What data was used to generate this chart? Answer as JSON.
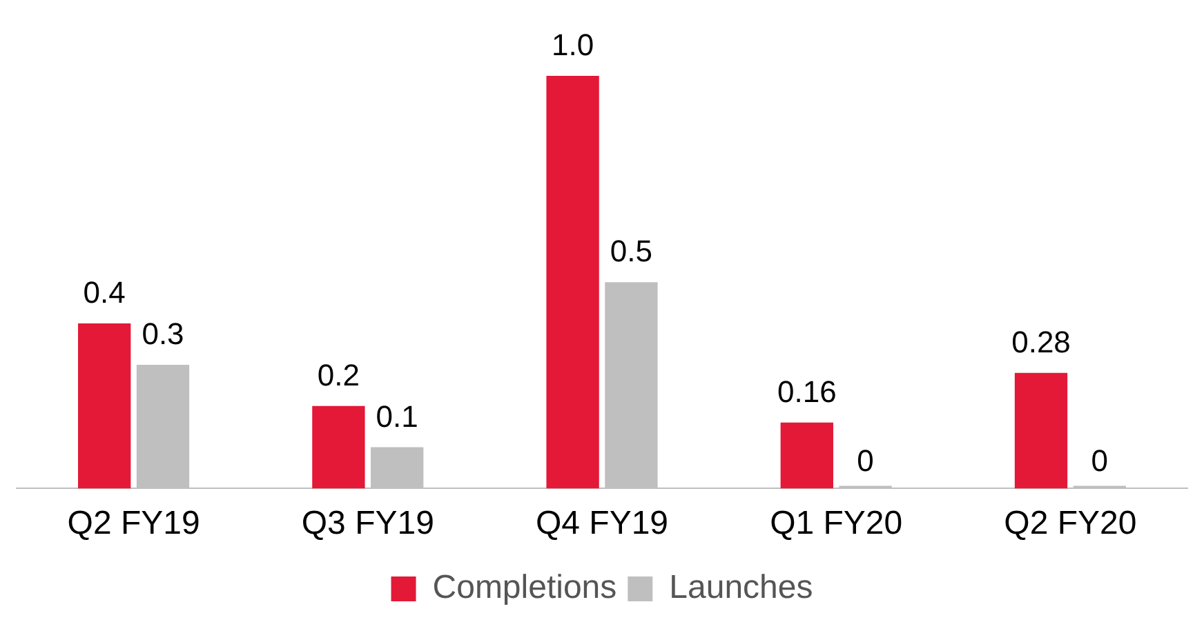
{
  "chart_data": {
    "type": "bar",
    "categories": [
      "Q2 FY19",
      "Q3 FY19",
      "Q4 FY19",
      "Q1 FY20",
      "Q2 FY20"
    ],
    "series": [
      {
        "name": "Completions",
        "color": "#e31937",
        "values": [
          0.4,
          0.2,
          1.0,
          0.16,
          0.28
        ],
        "value_labels": [
          "0.4",
          "0.2",
          "1.0",
          "0.16",
          "0.28"
        ]
      },
      {
        "name": "Launches",
        "color": "#bfbfbf",
        "values": [
          0.3,
          0.1,
          0.5,
          0,
          0
        ],
        "value_labels": [
          "0.3",
          "0.1",
          "0.5",
          "0",
          "0"
        ]
      }
    ],
    "legend": "bottom",
    "grid": false
  }
}
